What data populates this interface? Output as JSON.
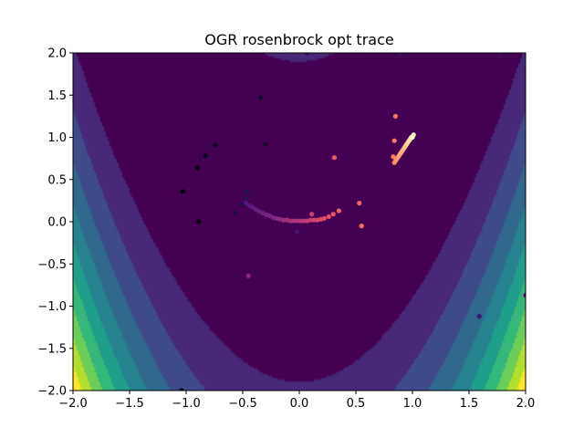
{
  "chart_data": {
    "type": "scatter",
    "title": "OGR rosenbrock opt trace",
    "xlabel": "",
    "ylabel": "",
    "xlim": [
      -2.0,
      2.0
    ],
    "ylim": [
      -2.0,
      2.0
    ],
    "xticks": [
      "−2.0",
      "−1.5",
      "−1.0",
      "−0.5",
      "0.0",
      "0.5",
      "1.0",
      "1.5",
      "2.0"
    ],
    "yticks": [
      "−2.0",
      "−1.5",
      "−1.0",
      "−0.5",
      "0.0",
      "0.5",
      "1.0",
      "1.5",
      "2.0"
    ],
    "background": "rosenbrock function filled contour (viridis colormap)",
    "colormap_points": "magma (early iterations dark, late iterations bright)",
    "grid": false,
    "points": [
      {
        "x": -1.04,
        "y": -2.0
      },
      {
        "x": -1.03,
        "y": 0.36
      },
      {
        "x": -0.89,
        "y": 0.0
      },
      {
        "x": -0.9,
        "y": 0.64
      },
      {
        "x": -0.83,
        "y": 0.78
      },
      {
        "x": -0.74,
        "y": 0.91
      },
      {
        "x": -0.34,
        "y": 1.47
      },
      {
        "x": -0.3,
        "y": 0.92
      },
      {
        "x": -0.57,
        "y": 0.11
      },
      {
        "x": -0.5,
        "y": 0.2
      },
      {
        "x": -0.46,
        "y": 0.36
      },
      {
        "x": -0.48,
        "y": 0.28
      },
      {
        "x": 0.07,
        "y": 2.0
      },
      {
        "x": 0.58,
        "y": 2.0
      },
      {
        "x": 0.89,
        "y": 2.0
      },
      {
        "x": 1.78,
        "y": 2.0
      },
      {
        "x": -0.02,
        "y": -0.12
      },
      {
        "x": 1.59,
        "y": -1.12
      },
      {
        "x": 2.0,
        "y": -0.87
      },
      {
        "x": -0.47,
        "y": 0.22
      },
      {
        "x": -0.44,
        "y": 0.19
      },
      {
        "x": -0.41,
        "y": 0.17
      },
      {
        "x": -0.38,
        "y": 0.14
      },
      {
        "x": -0.35,
        "y": 0.12
      },
      {
        "x": -0.32,
        "y": 0.1
      },
      {
        "x": -0.29,
        "y": 0.08
      },
      {
        "x": -0.26,
        "y": 0.07
      },
      {
        "x": -0.23,
        "y": 0.05
      },
      {
        "x": -0.2,
        "y": 0.04
      },
      {
        "x": -0.17,
        "y": 0.03
      },
      {
        "x": -0.45,
        "y": -0.64
      },
      {
        "x": -0.14,
        "y": 0.02
      },
      {
        "x": -0.11,
        "y": 0.02
      },
      {
        "x": -0.08,
        "y": 0.01
      },
      {
        "x": -0.05,
        "y": 0.01
      },
      {
        "x": -0.02,
        "y": 0.01
      },
      {
        "x": 0.01,
        "y": 0.01
      },
      {
        "x": 0.04,
        "y": 0.01
      },
      {
        "x": 0.07,
        "y": 0.01
      },
      {
        "x": 0.1,
        "y": 0.02
      },
      {
        "x": 0.11,
        "y": 0.09
      },
      {
        "x": 0.13,
        "y": 0.02
      },
      {
        "x": 0.16,
        "y": 0.02
      },
      {
        "x": 0.19,
        "y": 0.03
      },
      {
        "x": 0.22,
        "y": 0.04
      },
      {
        "x": 0.26,
        "y": 0.06
      },
      {
        "x": 0.3,
        "y": 0.09
      },
      {
        "x": 0.31,
        "y": 0.76
      },
      {
        "x": 0.35,
        "y": 0.13
      },
      {
        "x": 0.53,
        "y": 0.22
      },
      {
        "x": 0.55,
        "y": -0.05
      },
      {
        "x": 0.85,
        "y": 1.25
      },
      {
        "x": 0.84,
        "y": 0.96
      },
      {
        "x": 0.83,
        "y": 0.77
      },
      {
        "x": 0.84,
        "y": 0.7
      },
      {
        "x": 0.85,
        "y": 0.72
      },
      {
        "x": 0.86,
        "y": 0.74
      },
      {
        "x": 0.87,
        "y": 0.76
      },
      {
        "x": 0.88,
        "y": 0.78
      },
      {
        "x": 0.89,
        "y": 0.8
      },
      {
        "x": 0.9,
        "y": 0.82
      },
      {
        "x": 0.91,
        "y": 0.84
      },
      {
        "x": 0.92,
        "y": 0.86
      },
      {
        "x": 0.93,
        "y": 0.88
      },
      {
        "x": 0.94,
        "y": 0.9
      },
      {
        "x": 0.95,
        "y": 0.92
      },
      {
        "x": 0.96,
        "y": 0.94
      },
      {
        "x": 0.97,
        "y": 0.96
      },
      {
        "x": 0.98,
        "y": 0.98
      },
      {
        "x": 0.99,
        "y": 1.0
      },
      {
        "x": 1.0,
        "y": 1.01
      },
      {
        "x": 1.01,
        "y": 1.03
      },
      {
        "x": 1.0,
        "y": 1.0
      }
    ]
  }
}
